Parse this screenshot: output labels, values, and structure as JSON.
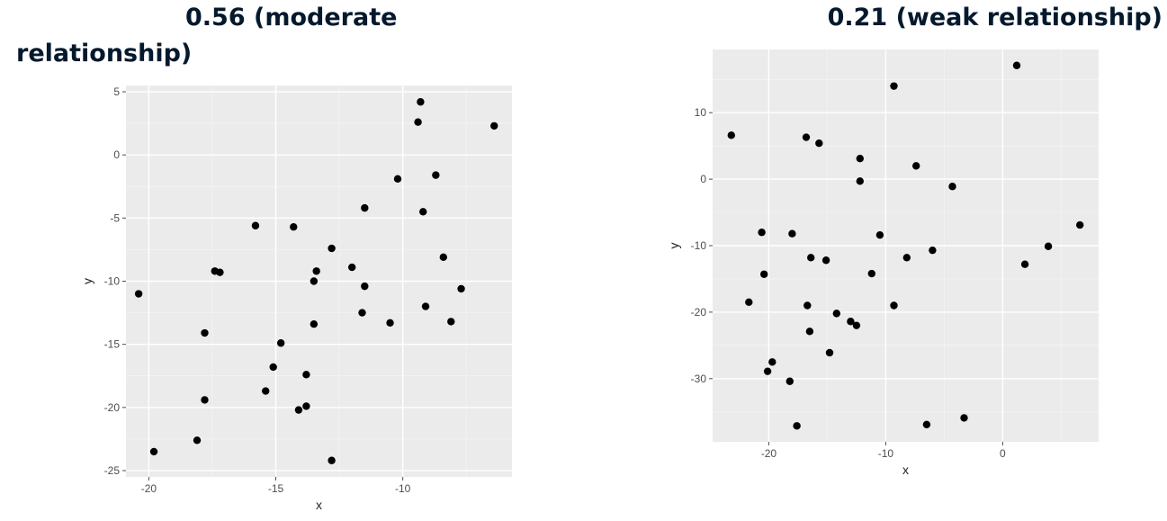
{
  "charts": [
    {
      "title": "0.56 (moderate relationship)",
      "chart_data": {
        "type": "scatter",
        "title": "0.56 (moderate relationship)",
        "xlabel": "x",
        "ylabel": "y",
        "xlim": [
          -20.9,
          -5.7
        ],
        "ylim": [
          -25.5,
          5.5
        ],
        "xticks": [
          -20,
          -15,
          -10
        ],
        "yticks": [
          5,
          0,
          -5,
          -10,
          -15,
          -20,
          -25
        ],
        "grid": true,
        "points": [
          {
            "x": -20.4,
            "y": -11.0
          },
          {
            "x": -19.8,
            "y": -23.5
          },
          {
            "x": -18.1,
            "y": -22.6
          },
          {
            "x": -17.8,
            "y": -14.1
          },
          {
            "x": -17.8,
            "y": -19.4
          },
          {
            "x": -17.4,
            "y": -9.2
          },
          {
            "x": -17.2,
            "y": -9.3
          },
          {
            "x": -15.8,
            "y": -5.6
          },
          {
            "x": -15.4,
            "y": -18.7
          },
          {
            "x": -15.1,
            "y": -16.8
          },
          {
            "x": -14.8,
            "y": -14.9
          },
          {
            "x": -14.3,
            "y": -5.7
          },
          {
            "x": -14.1,
            "y": -20.2
          },
          {
            "x": -13.8,
            "y": -17.4
          },
          {
            "x": -13.8,
            "y": -19.9
          },
          {
            "x": -13.5,
            "y": -13.4
          },
          {
            "x": -13.5,
            "y": -10.0
          },
          {
            "x": -13.4,
            "y": -9.2
          },
          {
            "x": -12.8,
            "y": -24.2
          },
          {
            "x": -12.8,
            "y": -7.4
          },
          {
            "x": -12.0,
            "y": -8.9
          },
          {
            "x": -11.5,
            "y": -4.2
          },
          {
            "x": -11.5,
            "y": -10.4
          },
          {
            "x": -11.6,
            "y": -12.5
          },
          {
            "x": -10.5,
            "y": -13.3
          },
          {
            "x": -10.2,
            "y": -1.9
          },
          {
            "x": -9.4,
            "y": 2.6
          },
          {
            "x": -9.3,
            "y": 4.2
          },
          {
            "x": -9.2,
            "y": -4.5
          },
          {
            "x": -9.1,
            "y": -12.0
          },
          {
            "x": -8.7,
            "y": -1.6
          },
          {
            "x": -8.4,
            "y": -8.1
          },
          {
            "x": -8.1,
            "y": -13.2
          },
          {
            "x": -7.7,
            "y": -10.6
          },
          {
            "x": -6.4,
            "y": 2.3
          }
        ]
      }
    },
    {
      "title": "0.21 (weak relationship)",
      "chart_data": {
        "type": "scatter",
        "title": "0.21 (weak relationship)",
        "xlabel": "x",
        "ylabel": "y",
        "xlim": [
          -24.8,
          8.2
        ],
        "ylim": [
          -39.5,
          19.5
        ],
        "xticks": [
          -20,
          -10,
          0
        ],
        "yticks": [
          10,
          0,
          -10,
          -20,
          -30
        ],
        "grid": true,
        "points": [
          {
            "x": -23.2,
            "y": 6.6
          },
          {
            "x": -21.7,
            "y": -18.5
          },
          {
            "x": -20.6,
            "y": -8.0
          },
          {
            "x": -20.4,
            "y": -14.3
          },
          {
            "x": -20.1,
            "y": -28.9
          },
          {
            "x": -19.7,
            "y": -27.5
          },
          {
            "x": -18.2,
            "y": -30.4
          },
          {
            "x": -18.0,
            "y": -8.2
          },
          {
            "x": -17.6,
            "y": -37.1
          },
          {
            "x": -16.8,
            "y": 6.3
          },
          {
            "x": -16.7,
            "y": -19.0
          },
          {
            "x": -16.5,
            "y": -22.9
          },
          {
            "x": -16.4,
            "y": -11.8
          },
          {
            "x": -15.7,
            "y": 5.4
          },
          {
            "x": -15.1,
            "y": -12.2
          },
          {
            "x": -14.8,
            "y": -26.1
          },
          {
            "x": -14.2,
            "y": -20.2
          },
          {
            "x": -13.0,
            "y": -21.4
          },
          {
            "x": -12.5,
            "y": -22.0
          },
          {
            "x": -12.2,
            "y": 3.1
          },
          {
            "x": -12.2,
            "y": -0.3
          },
          {
            "x": -11.2,
            "y": -14.2
          },
          {
            "x": -10.5,
            "y": -8.4
          },
          {
            "x": -9.3,
            "y": 14.0
          },
          {
            "x": -9.3,
            "y": -19.0
          },
          {
            "x": -8.2,
            "y": -11.8
          },
          {
            "x": -7.4,
            "y": 2.0
          },
          {
            "x": -6.5,
            "y": -36.9
          },
          {
            "x": -6.0,
            "y": -10.7
          },
          {
            "x": -4.3,
            "y": -1.1
          },
          {
            "x": -3.3,
            "y": -35.9
          },
          {
            "x": 1.2,
            "y": 17.1
          },
          {
            "x": 1.9,
            "y": -12.8
          },
          {
            "x": 3.9,
            "y": -10.1
          },
          {
            "x": 6.6,
            "y": -6.9
          }
        ]
      }
    }
  ]
}
